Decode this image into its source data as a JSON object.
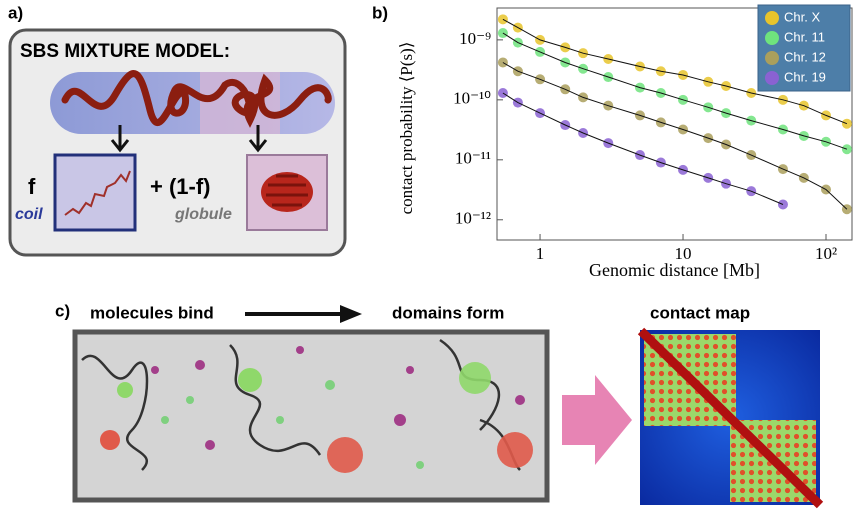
{
  "panels": {
    "a": {
      "label": "a)",
      "title": "SBS MIXTURE MODEL:",
      "f": "f",
      "coil": "coil",
      "plus": "+ (1-f)",
      "globule": "globule"
    },
    "b": {
      "label": "b)"
    },
    "c": {
      "label": "c)",
      "step1": "molecules bind",
      "step2": "domains form",
      "map": "contact map"
    }
  },
  "chart_data": {
    "type": "scatter",
    "xscale": "log",
    "yscale": "log",
    "x_label": "Genomic distance [Mb]",
    "y_label": "contact probability ⟨P(s)⟩",
    "x": [
      0.55,
      0.7,
      1,
      1.5,
      2,
      3,
      5,
      7,
      10,
      15,
      20,
      30,
      50,
      70,
      100,
      140
    ],
    "xlim": [
      0.5,
      152
    ],
    "ylim": [
      4.6e-13,
      3.4e-09
    ],
    "xticks": [
      1,
      10,
      {
        "value": 100,
        "label": "10²"
      }
    ],
    "yticks": [
      {
        "value": 1e-12,
        "label": "10⁻¹²"
      },
      {
        "value": 1e-11,
        "label": "10⁻¹¹"
      },
      {
        "value": 1e-10,
        "label": "10⁻¹⁰"
      },
      {
        "value": 1e-09,
        "label": "10⁻⁹"
      }
    ],
    "legend": "upper right",
    "series": [
      {
        "name": "Chr. X",
        "color": "#e8c42c",
        "values": [
          2.2e-09,
          1.6e-09,
          1e-09,
          7.5e-10,
          6e-10,
          4.8e-10,
          3.6e-10,
          3e-10,
          2.6e-10,
          2e-10,
          1.7e-10,
          1.3e-10,
          1e-10,
          8e-11,
          5.5e-11,
          4e-11
        ]
      },
      {
        "name": "Chr. 11",
        "color": "#6fe37d",
        "values": [
          1.3e-09,
          9e-10,
          6.3e-10,
          4.2e-10,
          3.3e-10,
          2.4e-10,
          1.6e-10,
          1.3e-10,
          1e-10,
          7.5e-11,
          6e-11,
          4.5e-11,
          3.2e-11,
          2.5e-11,
          2e-11,
          1.5e-11
        ]
      },
      {
        "name": "Chr. 12",
        "color": "#aa9f5c",
        "values": [
          4.2e-10,
          3e-10,
          2.2e-10,
          1.5e-10,
          1.1e-10,
          8e-11,
          5.5e-11,
          4.2e-11,
          3.2e-11,
          2.3e-11,
          1.8e-11,
          1.2e-11,
          7e-12,
          5e-12,
          3.2e-12,
          1.5e-12
        ]
      },
      {
        "name": "Chr. 19",
        "color": "#8a62d2",
        "values": [
          1.3e-10,
          9e-11,
          6e-11,
          3.8e-11,
          2.8e-11,
          1.9e-11,
          1.2e-11,
          9e-12,
          6.8e-12,
          5e-12,
          4e-12,
          3e-12,
          1.8e-12,
          null,
          null,
          null
        ]
      }
    ]
  }
}
